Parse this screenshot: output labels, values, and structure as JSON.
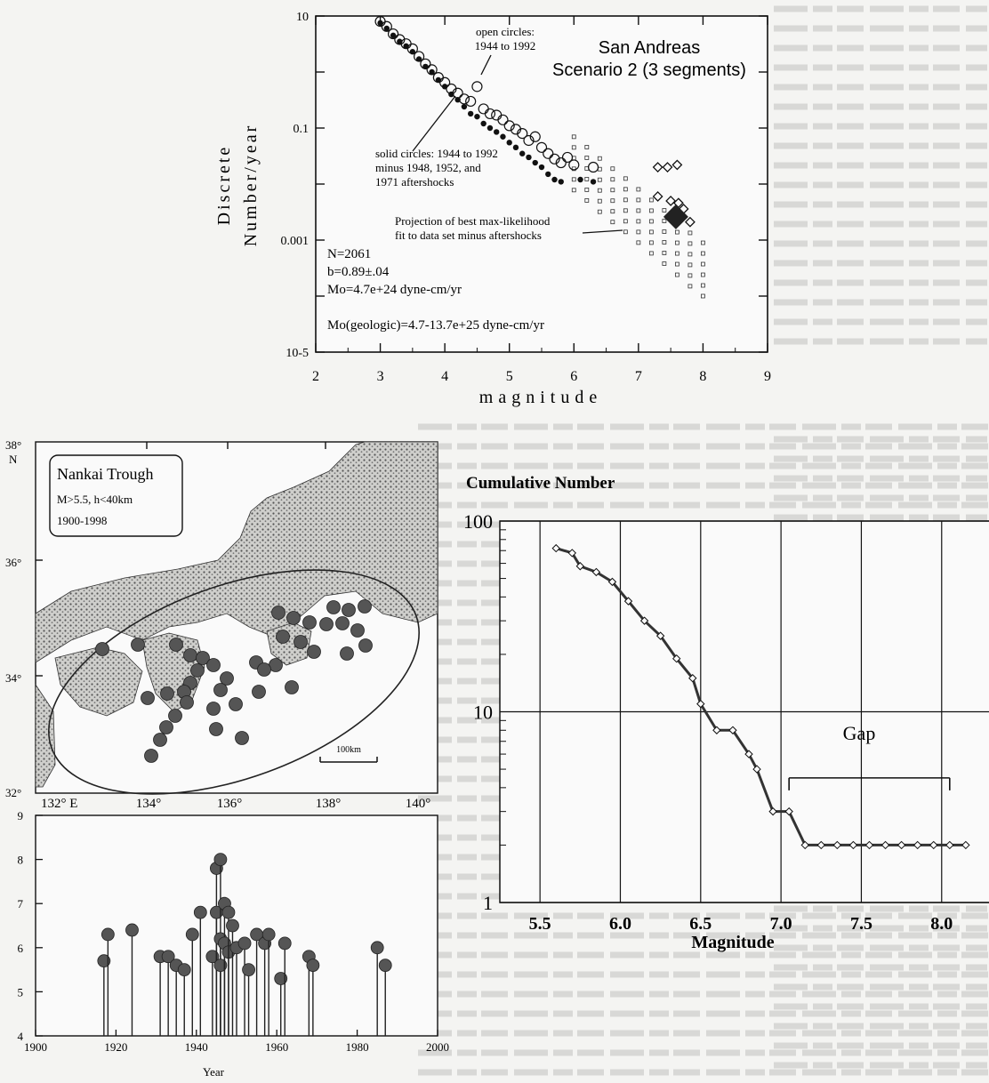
{
  "figure_a": {
    "ylabel": "Discrete Number/year",
    "xlabel": "magnitude",
    "title_line1": "San Andreas",
    "title_line2": "Scenario 2 (3 segments)",
    "annotation_open": [
      "open circles:",
      "1944 to 1992"
    ],
    "annotation_solid": [
      "solid circles: 1944 to 1992",
      "minus 1948, 1952, and",
      "1971 aftershocks"
    ],
    "annotation_projection": [
      "Projection of best max-likelihood",
      "fit to data set minus aftershocks"
    ],
    "stats": [
      "N=2061",
      "b=0.89±.04",
      "Mo=4.7e+24 dyne-cm/yr",
      "Mo(geologic)=4.7-13.7e+25 dyne-cm/yr"
    ],
    "yticks": [
      "10",
      "0.1",
      "0.001",
      "10-5"
    ],
    "xticks": [
      "2",
      "3",
      "4",
      "5",
      "6",
      "7",
      "8",
      "9"
    ]
  },
  "figure_b": {
    "legend": [
      "Nankai Trough",
      "M>5.5, h<40km",
      "1900-1998"
    ],
    "lat_labels": [
      "38°",
      "N",
      "36°",
      "34°",
      "32°"
    ],
    "lon_labels": [
      "132° E",
      "134°",
      "136°",
      "138°",
      "140°"
    ],
    "scale_label": "100km"
  },
  "figure_c": {
    "xlabel": "Year",
    "yticks": [
      "4",
      "5",
      "6",
      "7",
      "8",
      "9"
    ],
    "xticks": [
      "1900",
      "1920",
      "1940",
      "1960",
      "1980",
      "2000"
    ]
  },
  "figure_d": {
    "title": "Cumulative Number",
    "xlabel": "Magnitude",
    "gap_label": "Gap",
    "yticks": [
      "1",
      "10",
      "100"
    ],
    "xticks": [
      "5.5",
      "6.0",
      "6.5",
      "7.0",
      "7.5",
      "8.0"
    ]
  },
  "chart_data": [
    {
      "type": "scatter",
      "xlabel": "magnitude",
      "ylabel": "Discrete Number/year",
      "log_y": true,
      "xlim": [
        2,
        9
      ],
      "ylim": [
        1e-05,
        10
      ],
      "series": [
        {
          "name": "open circles: 1944 to 1992",
          "x": [
            3.0,
            3.1,
            3.2,
            3.3,
            3.4,
            3.5,
            3.6,
            3.7,
            3.8,
            3.9,
            4.0,
            4.1,
            4.2,
            4.3,
            4.4,
            4.5,
            4.6,
            4.7,
            4.8,
            4.9,
            5.0,
            5.1,
            5.2,
            5.3,
            5.4,
            5.5,
            5.6,
            5.7,
            5.8,
            5.9,
            6.0,
            6.3
          ],
          "y": [
            8,
            6.5,
            4.8,
            3.8,
            3.2,
            2.6,
            1.9,
            1.4,
            1.1,
            0.8,
            0.65,
            0.5,
            0.42,
            0.33,
            0.3,
            0.55,
            0.22,
            0.18,
            0.17,
            0.14,
            0.11,
            0.095,
            0.08,
            0.06,
            0.07,
            0.045,
            0.035,
            0.028,
            0.024,
            0.03,
            0.022,
            0.02
          ]
        },
        {
          "name": "solid circles: 1944 to 1992 minus 1948, 1952, and 1971 aftershocks",
          "x": [
            3.0,
            3.1,
            3.2,
            3.3,
            3.4,
            3.5,
            3.6,
            3.7,
            3.8,
            3.9,
            4.0,
            4.1,
            4.2,
            4.3,
            4.4,
            4.5,
            4.6,
            4.7,
            4.8,
            4.9,
            5.0,
            5.1,
            5.2,
            5.3,
            5.4,
            5.5,
            5.6,
            5.7,
            5.8,
            6.1,
            6.3
          ],
          "y": [
            7.5,
            6,
            4.5,
            3.5,
            2.9,
            2.3,
            1.7,
            1.25,
            1.0,
            0.72,
            0.55,
            0.4,
            0.32,
            0.24,
            0.18,
            0.16,
            0.12,
            0.1,
            0.085,
            0.07,
            0.055,
            0.045,
            0.035,
            0.03,
            0.024,
            0.02,
            0.015,
            0.012,
            0.011,
            0.012,
            0.011
          ]
        },
        {
          "name": "Projection of best max-likelihood fit to data set minus aftershocks",
          "x": [
            6.0,
            6.2,
            6.4,
            6.6,
            6.8,
            7.0,
            7.2,
            7.4,
            7.6,
            7.8,
            8.0
          ],
          "y": [
            0.0078,
            0.0051,
            0.0032,
            0.0021,
            0.0014,
            0.0009,
            0.00058,
            0.00038,
            0.00024,
            0.00015,
            0.0001
          ]
        }
      ]
    },
    {
      "type": "bar",
      "xlabel": "Year",
      "xlim": [
        1900,
        2000
      ],
      "ylim": [
        4,
        9
      ],
      "x": [
        1917,
        1918,
        1924,
        1931,
        1933,
        1935,
        1937,
        1939,
        1941,
        1944,
        1945,
        1945,
        1946,
        1946,
        1946,
        1947,
        1947,
        1948,
        1948,
        1949,
        1950,
        1952,
        1953,
        1955,
        1957,
        1958,
        1961,
        1962,
        1968,
        1969,
        1985,
        1987
      ],
      "values": [
        5.7,
        6.3,
        6.4,
        5.8,
        5.8,
        5.6,
        5.5,
        6.3,
        6.8,
        5.8,
        7.8,
        6.8,
        8.0,
        6.2,
        5.6,
        7.0,
        6.1,
        5.9,
        6.8,
        6.5,
        6.0,
        6.1,
        5.5,
        6.3,
        6.1,
        6.3,
        5.3,
        6.1,
        5.8,
        5.6,
        6.0,
        5.6
      ]
    },
    {
      "type": "line",
      "title": "Cumulative Number",
      "xlabel": "Magnitude",
      "log_y": true,
      "xlim": [
        5.25,
        8.35
      ],
      "ylim": [
        1,
        100
      ],
      "x": [
        5.6,
        5.7,
        5.75,
        5.85,
        5.95,
        6.05,
        6.15,
        6.25,
        6.35,
        6.45,
        6.5,
        6.6,
        6.7,
        6.8,
        6.85,
        6.95,
        7.05,
        7.15,
        7.25,
        7.35,
        7.45,
        7.55,
        7.65,
        7.75,
        7.85,
        7.95,
        8.05,
        8.15
      ],
      "values": [
        72,
        68,
        58,
        54,
        48,
        38,
        30,
        25,
        19,
        15,
        11,
        8,
        8,
        6,
        5,
        3,
        3,
        2,
        2,
        2,
        2,
        2,
        2,
        2,
        2,
        2,
        2,
        2
      ]
    }
  ]
}
